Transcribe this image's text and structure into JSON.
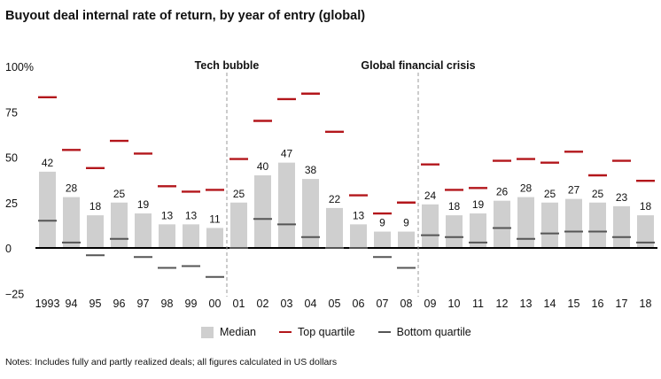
{
  "title": "Buyout deal internal rate of return, by year of entry (global)",
  "notes": "Notes: Includes fully and partly realized deals; all figures calculated in US dollars",
  "colors": {
    "median": "#cfcfcf",
    "top": "#b3161b",
    "bottom": "#555555",
    "zero": "#000000",
    "divider": "#9a9a9a"
  },
  "legend": {
    "median": "Median",
    "top": "Top quartile",
    "bottom": "Bottom quartile"
  },
  "chart_data": {
    "type": "bar",
    "title": "Buyout deal internal rate of return, by year of entry (global)",
    "y_tick_labels": [
      "100%",
      "75",
      "50",
      "25",
      "0",
      "−25"
    ],
    "y_ticks": [
      100,
      75,
      50,
      25,
      0,
      -25
    ],
    "ylim": [
      -25,
      100
    ],
    "categories": [
      "1993",
      "94",
      "95",
      "96",
      "97",
      "98",
      "99",
      "00",
      "01",
      "02",
      "03",
      "04",
      "05",
      "06",
      "07",
      "08",
      "09",
      "10",
      "11",
      "12",
      "13",
      "14",
      "15",
      "16",
      "17",
      "18"
    ],
    "series": [
      {
        "name": "Median",
        "values": [
          42,
          28,
          18,
          25,
          19,
          13,
          13,
          11,
          25,
          40,
          47,
          38,
          22,
          13,
          9,
          9,
          24,
          18,
          19,
          26,
          28,
          25,
          27,
          25,
          23,
          18
        ]
      },
      {
        "name": "Top quartile",
        "values": [
          83,
          54,
          44,
          59,
          52,
          34,
          31,
          32,
          49,
          70,
          82,
          85,
          64,
          29,
          19,
          25,
          46,
          32,
          33,
          48,
          49,
          47,
          53,
          40,
          48,
          37
        ]
      },
      {
        "name": "Bottom quartile",
        "values": [
          15,
          3,
          -4,
          5,
          -5,
          -11,
          -10,
          -16,
          0,
          16,
          13,
          6,
          0,
          0,
          -5,
          -11,
          7,
          6,
          3,
          11,
          5,
          8,
          9,
          9,
          6,
          3
        ]
      }
    ],
    "annotations": [
      {
        "text": "Tech bubble",
        "after_category": "00"
      },
      {
        "text": "Global financial crisis",
        "after_category": "08"
      }
    ],
    "grid": false,
    "legend_position": "bottom"
  }
}
